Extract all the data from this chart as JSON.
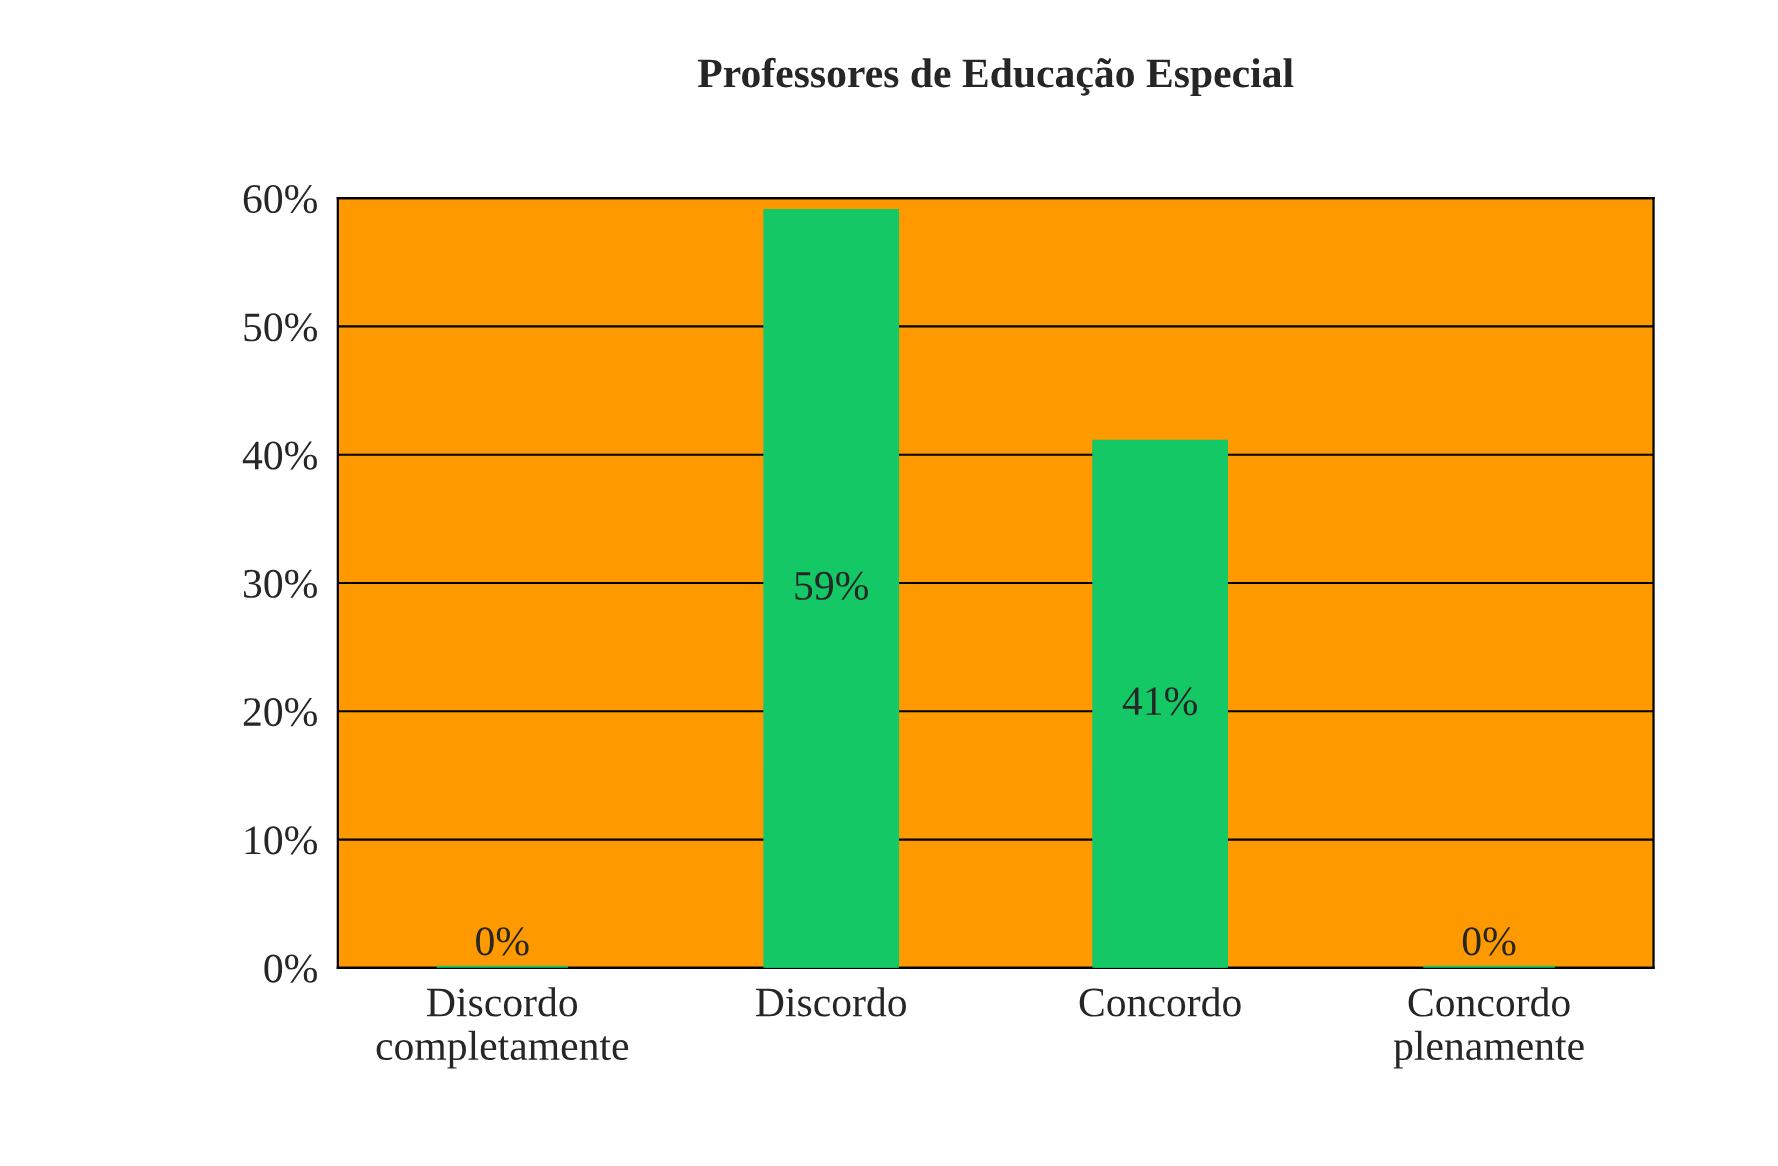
{
  "chart_data": {
    "type": "bar",
    "title": "Professores de Educação Especial",
    "categories": [
      "Discordo\ncompletamente",
      "Discordo",
      "Concordo",
      "Concordo\nplenamente"
    ],
    "values": [
      0,
      59,
      41,
      0
    ],
    "value_labels": [
      "0%",
      "59%",
      "41%",
      "0%"
    ],
    "color": "#14c866",
    "ylim": [
      0,
      60
    ],
    "yticks": [
      {
        "value": 0,
        "label": "0%"
      },
      {
        "value": 10,
        "label": "10%"
      },
      {
        "value": 20,
        "label": "20%"
      },
      {
        "value": 30,
        "label": "30%"
      },
      {
        "value": 40,
        "label": "40%"
      },
      {
        "value": 50,
        "label": "50%"
      },
      {
        "value": 60,
        "label": "60%"
      }
    ],
    "grid": "y",
    "legend": false
  }
}
